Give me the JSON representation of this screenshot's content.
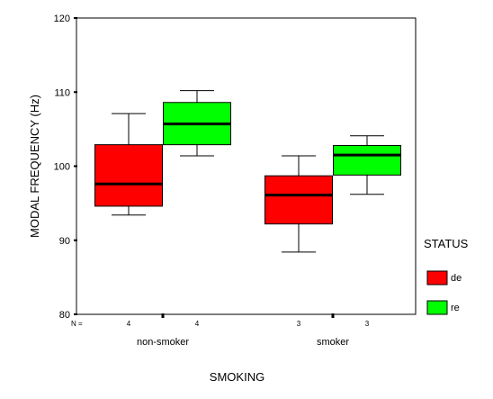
{
  "chart_data": {
    "type": "boxplot",
    "xlabel": "SMOKING",
    "ylabel": "MODAL FREQUENCY (Hz)",
    "ylim": [
      80,
      120
    ],
    "yticks": [
      80,
      90,
      100,
      110,
      120
    ],
    "n_label": "N =",
    "legend": {
      "title": "STATUS",
      "placement": "right",
      "entries": [
        {
          "name": "de",
          "color": "#ff0000"
        },
        {
          "name": "re",
          "color": "#00ff00"
        }
      ]
    },
    "categories": [
      "non-smoker",
      "smoker"
    ],
    "series": [
      {
        "name": "de",
        "color": "#ff0000",
        "boxes": [
          {
            "category": "non-smoker",
            "n": "4",
            "min": 93.4,
            "q1": 94.6,
            "median": 97.6,
            "q3": 102.9,
            "max": 107.1
          },
          {
            "category": "smoker",
            "n": "3",
            "min": 88.4,
            "q1": 92.2,
            "median": 96.1,
            "q3": 98.7,
            "max": 101.4
          }
        ]
      },
      {
        "name": "re",
        "color": "#00ff00",
        "boxes": [
          {
            "category": "non-smoker",
            "n": "4",
            "min": 101.4,
            "q1": 102.9,
            "median": 105.7,
            "q3": 108.6,
            "max": 110.2
          },
          {
            "category": "smoker",
            "n": "3",
            "min": 96.2,
            "q1": 98.8,
            "median": 101.5,
            "q3": 102.8,
            "max": 104.1
          }
        ]
      }
    ]
  }
}
